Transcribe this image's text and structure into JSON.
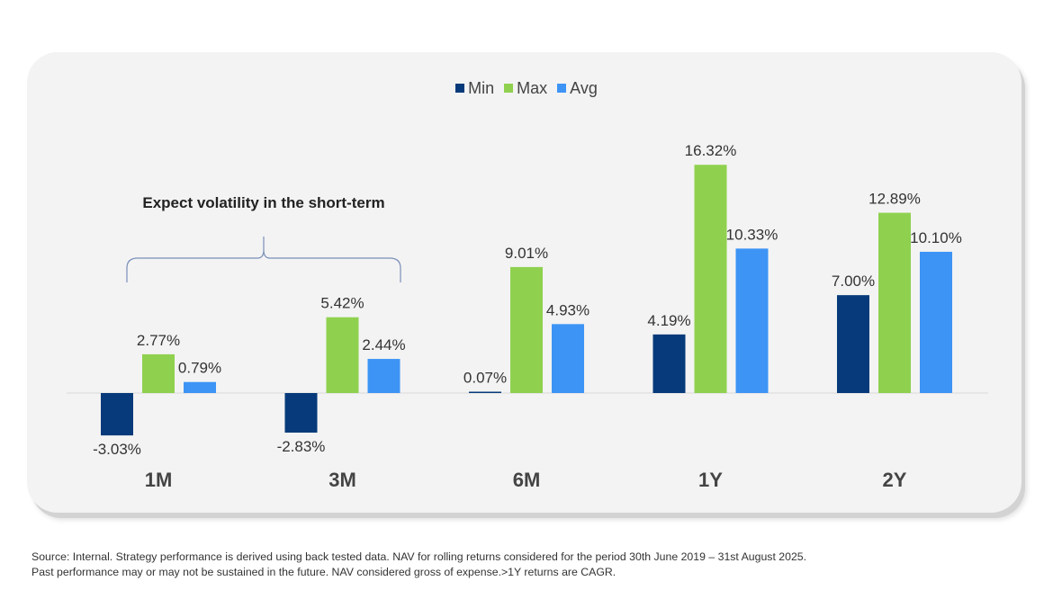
{
  "chart_data": {
    "type": "bar",
    "categories": [
      "1M",
      "3M",
      "6M",
      "1Y",
      "2Y"
    ],
    "series": [
      {
        "name": "Min",
        "color": "#063a7a",
        "values": [
          -3.03,
          -2.83,
          0.07,
          4.19,
          7.0
        ]
      },
      {
        "name": "Max",
        "color": "#8fd14f",
        "values": [
          2.77,
          5.42,
          9.01,
          16.32,
          12.89
        ]
      },
      {
        "name": "Avg",
        "color": "#3d94f5",
        "values": [
          0.79,
          2.44,
          4.93,
          10.33,
          10.1
        ]
      }
    ],
    "labels": {
      "Min": [
        "-3.03%",
        "-2.83%",
        "0.07%",
        "4.19%",
        "7.00%"
      ],
      "Max": [
        "2.77%",
        "5.42%",
        "9.01%",
        "16.32%",
        "12.89%"
      ],
      "Avg": [
        "0.79%",
        "2.44%",
        "4.93%",
        "10.33%",
        "10.10%"
      ]
    },
    "annotation": "Expect volatility in the short-term",
    "ylabel": "",
    "xlabel": "",
    "legend_position": "top-center"
  },
  "footer": {
    "line1": "Source: Internal. Strategy performance is derived using back tested data. NAV for rolling returns considered for the period 30th June 2019 – 31st  August 2025.",
    "line2": "Past performance may or may not be sustained in the future. NAV considered gross of expense.>1Y returns are CAGR."
  }
}
